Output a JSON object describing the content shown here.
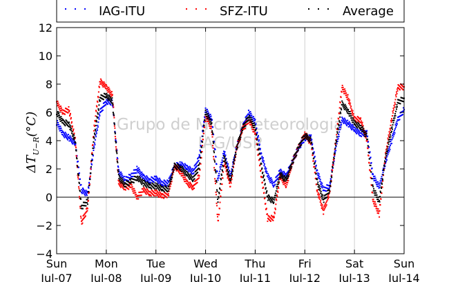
{
  "chart_data": {
    "type": "scatter",
    "title": "",
    "ylabel": "ΔT_{U-R}(°C)",
    "ylabel_display": {
      "main": "ΔT",
      "sub": "U−R",
      "unit": "(°C)"
    },
    "xlabel": "",
    "ylim": [
      -4,
      12
    ],
    "xlim": [
      0,
      7
    ],
    "yticks": [
      "−4",
      "−2",
      "0",
      "2",
      "4",
      "6",
      "8",
      "10",
      "12"
    ],
    "yticks_values": [
      -4,
      -2,
      0,
      2,
      4,
      6,
      8,
      10,
      12
    ],
    "xticks": [
      {
        "day": "Sun",
        "date": "Jul-07"
      },
      {
        "day": "Mon",
        "date": "Jul-08"
      },
      {
        "day": "Tue",
        "date": "Jul-09"
      },
      {
        "day": "Wed",
        "date": "Jul-10"
      },
      {
        "day": "Thu",
        "date": "Jul-11"
      },
      {
        "day": "Fri",
        "date": "Jul-12"
      },
      {
        "day": "Sat",
        "date": "Jul-13"
      },
      {
        "day": "Sun",
        "date": "Jul-14"
      }
    ],
    "grid": "vertical",
    "zero_line": true,
    "legend_position": "top",
    "watermark": [
      "Grupo de Micrometeorologia",
      "IAG/USP"
    ],
    "series": [
      {
        "name": "IAG-ITU",
        "color": "#0000ff",
        "x": [
          0,
          0.125,
          0.25,
          0.375,
          0.5,
          0.625,
          0.75,
          0.875,
          1,
          1.125,
          1.25,
          1.375,
          1.5,
          1.625,
          1.75,
          1.875,
          2,
          2.125,
          2.25,
          2.375,
          2.5,
          2.625,
          2.75,
          2.875,
          3,
          3.125,
          3.25,
          3.375,
          3.5,
          3.625,
          3.75,
          3.875,
          4,
          4.125,
          4.25,
          4.375,
          4.5,
          4.625,
          4.75,
          4.875,
          5,
          5.125,
          5.25,
          5.375,
          5.5,
          5.625,
          5.75,
          5.875,
          6,
          6.125,
          6.25,
          6.375,
          6.5,
          6.625,
          6.75,
          6.875,
          7
        ],
        "values": [
          5.3,
          4.5,
          4.2,
          3.8,
          0.5,
          0.2,
          3.5,
          6.0,
          6.8,
          6.7,
          1.8,
          1.2,
          1.5,
          2.0,
          1.4,
          1.2,
          1.3,
          1.0,
          1.0,
          2.2,
          2.3,
          2.1,
          1.8,
          2.8,
          6.2,
          5.5,
          1.3,
          3.2,
          1.5,
          3.5,
          5.0,
          6.0,
          5.3,
          3.0,
          1.5,
          0.9,
          1.8,
          1.5,
          2.5,
          3.5,
          4.2,
          4.2,
          1.8,
          0.5,
          0.8,
          3.5,
          5.5,
          5.2,
          4.8,
          4.5,
          4.5,
          1.5,
          0.7,
          2.5,
          4.0,
          5.5,
          6.2
        ]
      },
      {
        "name": "SFZ-ITU",
        "color": "#ff0000",
        "x": [
          0,
          0.125,
          0.25,
          0.375,
          0.5,
          0.625,
          0.75,
          0.875,
          1,
          1.125,
          1.25,
          1.375,
          1.5,
          1.625,
          1.75,
          1.875,
          2,
          2.125,
          2.25,
          2.375,
          2.5,
          2.625,
          2.75,
          2.875,
          3,
          3.125,
          3.25,
          3.375,
          3.5,
          3.625,
          3.75,
          3.875,
          4,
          4.125,
          4.25,
          4.375,
          4.5,
          4.625,
          4.75,
          4.875,
          5,
          5.125,
          5.25,
          5.375,
          5.5,
          5.625,
          5.75,
          5.875,
          6,
          6.125,
          6.25,
          6.375,
          6.5,
          6.625,
          6.75,
          6.875,
          7
        ],
        "values": [
          6.7,
          6.0,
          6.2,
          4.0,
          -1.8,
          -0.8,
          4.8,
          8.2,
          7.8,
          7.2,
          1.0,
          0.7,
          0.8,
          0.0,
          0.5,
          0.3,
          0.3,
          0.1,
          0.2,
          2.2,
          1.8,
          1.0,
          0.7,
          1.5,
          5.8,
          4.8,
          -1.8,
          2.5,
          0.8,
          3.5,
          4.8,
          5.5,
          4.5,
          1.5,
          -1.5,
          -1.5,
          1.5,
          0.8,
          2.5,
          3.5,
          4.5,
          3.8,
          0.5,
          -1.0,
          0.3,
          4.0,
          7.8,
          7.0,
          5.5,
          5.5,
          4.0,
          -0.2,
          -1.2,
          3.0,
          5.5,
          7.8,
          7.8
        ]
      },
      {
        "name": "Average",
        "color": "#000000",
        "x": [
          0,
          0.125,
          0.25,
          0.375,
          0.5,
          0.625,
          0.75,
          0.875,
          1,
          1.125,
          1.25,
          1.375,
          1.5,
          1.625,
          1.75,
          1.875,
          2,
          2.125,
          2.25,
          2.375,
          2.5,
          2.625,
          2.75,
          2.875,
          3,
          3.125,
          3.25,
          3.375,
          3.5,
          3.625,
          3.75,
          3.875,
          4,
          4.125,
          4.25,
          4.375,
          4.5,
          4.625,
          4.75,
          4.875,
          5,
          5.125,
          5.25,
          5.375,
          5.5,
          5.625,
          5.75,
          5.875,
          6,
          6.125,
          6.25,
          6.375,
          6.5,
          6.625,
          6.75,
          6.875,
          7
        ],
        "values": [
          6.0,
          5.3,
          5.2,
          3.9,
          -0.7,
          -0.3,
          4.1,
          7.0,
          7.2,
          6.8,
          1.4,
          0.9,
          1.1,
          1.4,
          1.0,
          0.8,
          0.8,
          0.6,
          0.6,
          2.2,
          2.1,
          1.6,
          1.3,
          2.2,
          6.0,
          5.2,
          -0.3,
          2.9,
          1.1,
          3.5,
          4.9,
          5.7,
          4.9,
          2.2,
          0.0,
          -0.3,
          1.6,
          1.2,
          2.5,
          3.5,
          4.4,
          4.0,
          1.1,
          -0.2,
          0.5,
          3.8,
          6.6,
          6.1,
          5.2,
          5.0,
          4.3,
          0.6,
          -0.3,
          2.8,
          4.8,
          6.7,
          7.0
        ]
      }
    ]
  }
}
